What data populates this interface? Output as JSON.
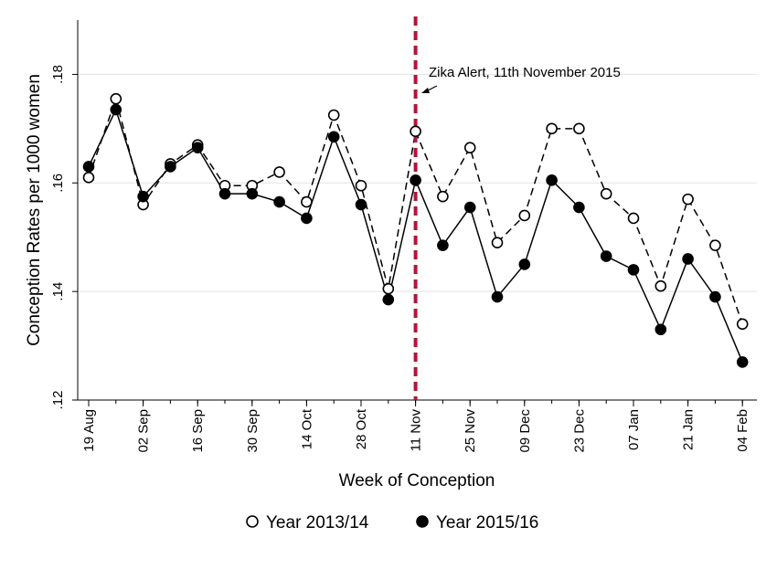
{
  "chart_data": {
    "type": "line",
    "title": "",
    "xlabel": "Week of Conception",
    "ylabel": "Conception Rates per 1000 women",
    "ylim": [
      0.12,
      0.19
    ],
    "yticks": [
      0.12,
      0.14,
      0.16,
      0.18
    ],
    "ytick_labels": [
      ".12",
      ".14",
      ".16",
      ".18"
    ],
    "x_count": 25,
    "xtick_index": [
      0,
      2,
      4,
      6,
      8,
      10,
      12,
      14,
      16,
      18,
      20,
      22,
      24
    ],
    "xtick_labels": [
      "19 Aug",
      "02 Sep",
      "16 Sep",
      "30 Sep",
      "14 Oct",
      "28 Oct",
      "11 Nov",
      "25 Nov",
      "09 Dec",
      "23 Dec",
      "07 Jan",
      "21 Jan",
      "04 Feb"
    ],
    "grid": "horizontal",
    "legend_position": "bottom",
    "series": [
      {
        "name": "Year 2013/14",
        "style": "dashed",
        "marker": "hollow-circle",
        "values": [
          0.161,
          0.1755,
          0.156,
          0.1635,
          0.167,
          0.1595,
          0.1595,
          0.162,
          0.1565,
          0.1725,
          0.1595,
          0.1405,
          0.1695,
          0.1575,
          0.1665,
          0.149,
          0.154,
          0.17,
          0.17,
          0.158,
          0.1535,
          0.141,
          0.157,
          0.1485,
          0.134
        ]
      },
      {
        "name": "Year 2015/16",
        "style": "solid",
        "marker": "filled-circle",
        "values": [
          0.163,
          0.1735,
          0.1575,
          0.163,
          0.1665,
          0.158,
          0.158,
          0.1565,
          0.1535,
          0.1685,
          0.156,
          0.1385,
          0.1605,
          0.1485,
          0.1555,
          0.139,
          0.145,
          0.1605,
          0.1555,
          0.1465,
          0.144,
          0.133,
          0.146,
          0.139,
          0.127
        ]
      }
    ],
    "annotation": {
      "text": "Zika Alert, 11th November 2015",
      "x_index": 12,
      "line_color": "#b0163a"
    }
  }
}
